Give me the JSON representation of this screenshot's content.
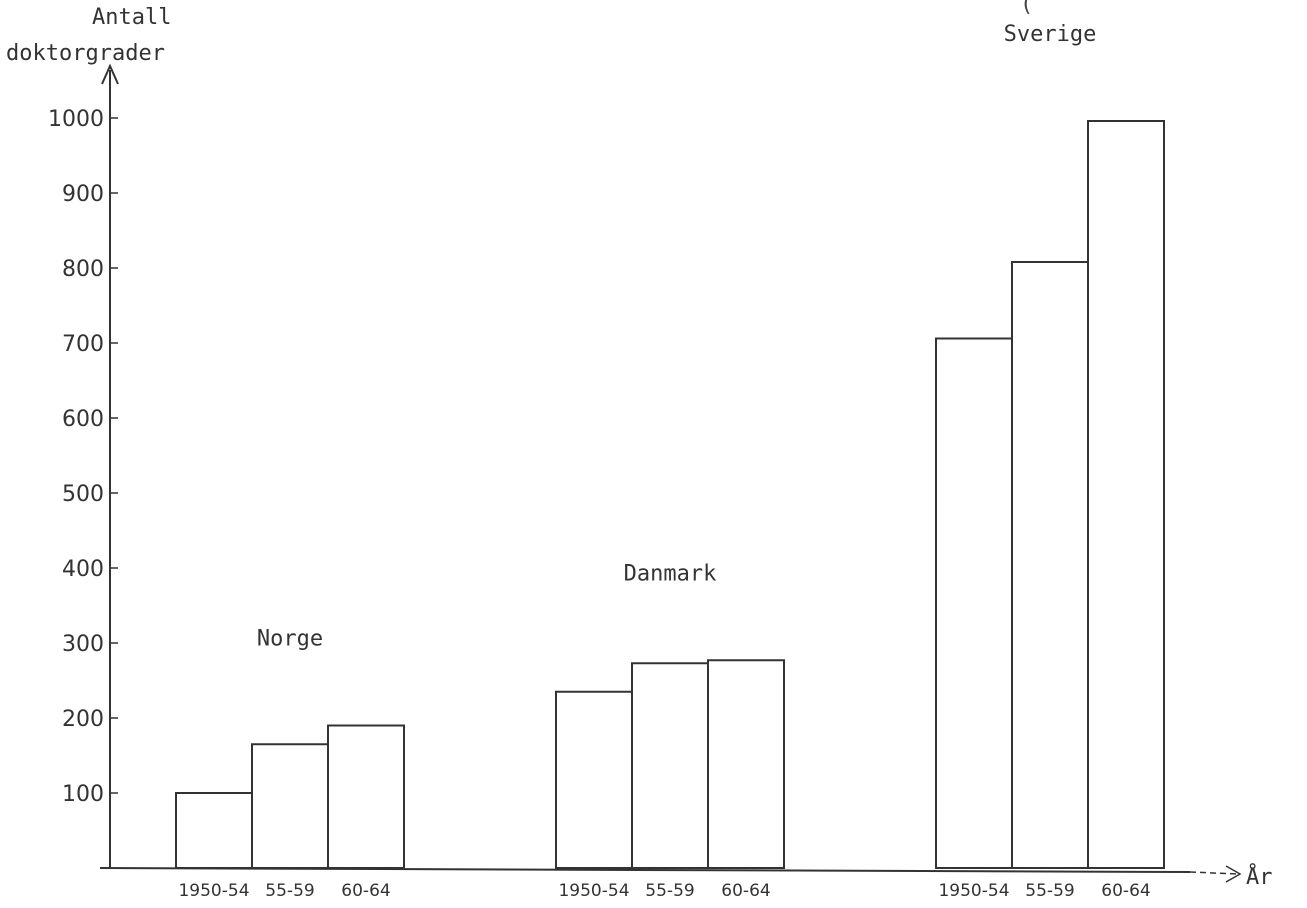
{
  "corner_fragment": "(",
  "chart_data": {
    "type": "bar",
    "ylabel": [
      "Antall",
      "doktorgrader"
    ],
    "xlabel": "År",
    "ylim": [
      0,
      1000
    ],
    "yticks": [
      "100",
      "200",
      "300",
      "400",
      "500",
      "600",
      "700",
      "800",
      "900",
      "1000"
    ],
    "grid": false,
    "groups": [
      {
        "name": "Norge",
        "categories": [
          "1950-54",
          "55-59",
          "60-64"
        ],
        "values": [
          100,
          165,
          190
        ]
      },
      {
        "name": "Danmark",
        "categories": [
          "1950-54",
          "55-59",
          "60-64"
        ],
        "values": [
          235,
          273,
          277
        ]
      },
      {
        "name": "Sverige",
        "categories": [
          "1950-54",
          "55-59",
          "60-64"
        ],
        "values": [
          706,
          808,
          996
        ]
      }
    ]
  }
}
